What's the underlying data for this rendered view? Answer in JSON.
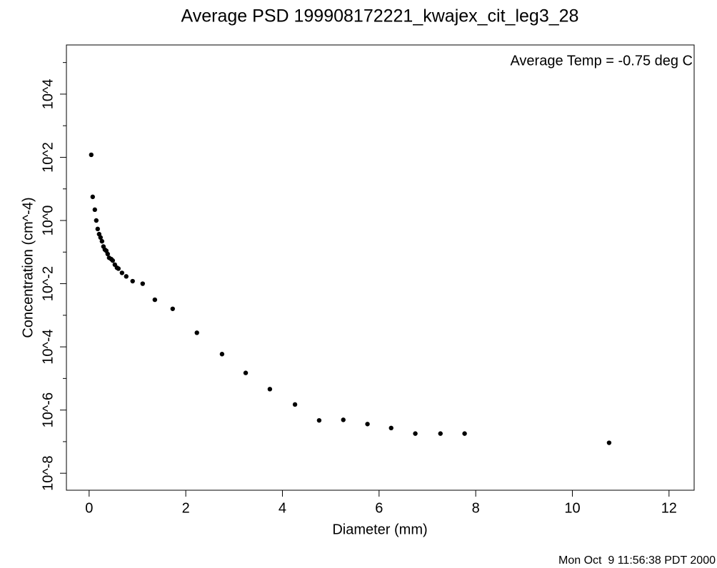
{
  "chart_data": {
    "type": "scatter",
    "title": "Average PSD 199908172221_kwajex_cit_leg3_28",
    "annotation": "Average Temp = -0.75 deg C",
    "x_label": "Diameter (mm)",
    "y_label": "Concentration (cm^-4)",
    "footer": "Mon Oct  9 11:56:38 PDT 2000",
    "ylog": true,
    "color": "#000000",
    "xlim": [
      -0.47,
      12.52
    ],
    "xticks": [
      0,
      2,
      4,
      6,
      8,
      10,
      12
    ],
    "ylim": [
      2.9e-09,
      360000
    ],
    "yticks": [
      {
        "value": 10000,
        "label": "10^4"
      },
      {
        "value": 100,
        "label": "10^2"
      },
      {
        "value": 1,
        "label": "10^0"
      },
      {
        "value": 0.01,
        "label": "10^-2"
      },
      {
        "value": 0.0001,
        "label": "10^-4"
      },
      {
        "value": 1e-06,
        "label": "10^-6"
      },
      {
        "value": 1e-08,
        "label": "10^-8"
      }
    ],
    "yminorticks": [
      100000,
      1000,
      10,
      0.1,
      0.001,
      1e-05,
      1e-07
    ],
    "x": [
      0.044,
      0.074,
      0.118,
      0.148,
      0.177,
      0.207,
      0.236,
      0.266,
      0.296,
      0.325,
      0.355,
      0.384,
      0.414,
      0.458,
      0.488,
      0.532,
      0.576,
      0.606,
      0.68,
      0.768,
      0.9,
      1.108,
      1.36,
      1.729,
      2.23,
      2.75,
      3.24,
      3.74,
      4.26,
      4.76,
      5.26,
      5.76,
      6.25,
      6.75,
      7.27,
      7.77,
      10.76
    ],
    "values": [
      120,
      5.6,
      2.2,
      1.0,
      0.54,
      0.37,
      0.29,
      0.22,
      0.15,
      0.12,
      0.11,
      0.087,
      0.066,
      0.06,
      0.054,
      0.04,
      0.032,
      0.03,
      0.022,
      0.017,
      0.012,
      0.01,
      0.0031,
      0.0016,
      0.00028,
      5.9e-05,
      1.5e-05,
      4.6e-06,
      1.5e-06,
      4.7e-07,
      4.9e-07,
      3.6e-07,
      2.7e-07,
      1.8e-07,
      1.8e-07,
      1.8e-07,
      9.2e-08
    ]
  }
}
